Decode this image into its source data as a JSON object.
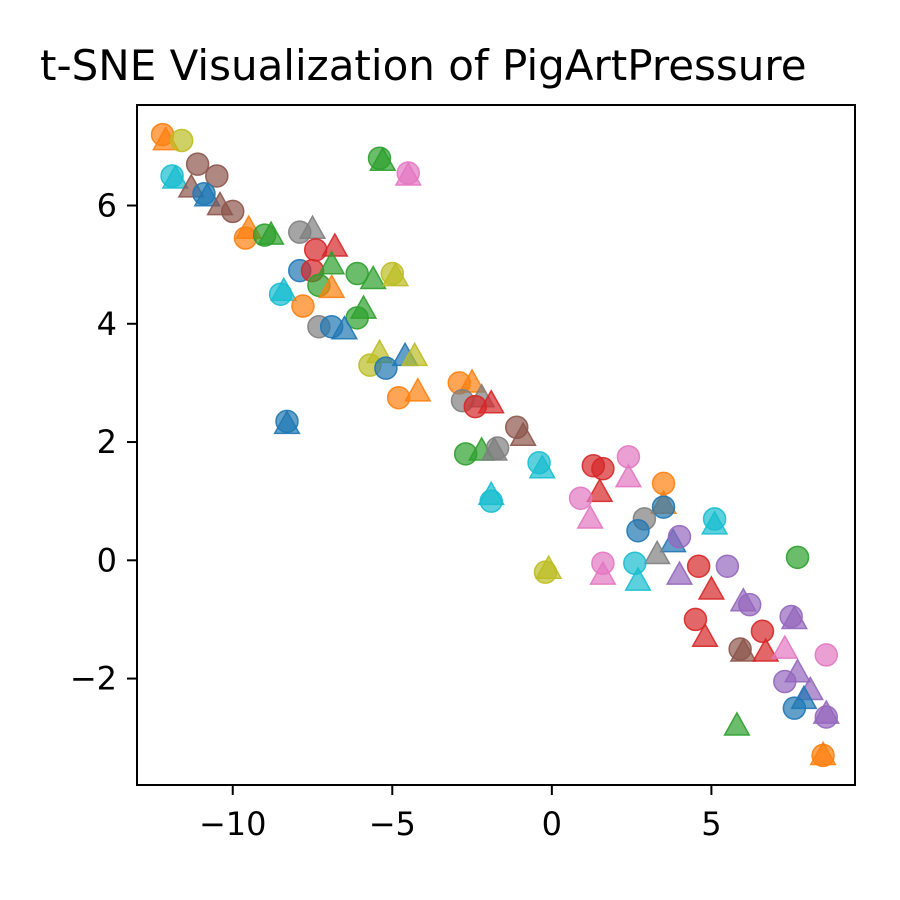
{
  "chart_data": {
    "type": "scatter",
    "title": "t-SNE Visualization of PigArtPressure",
    "xlabel": "",
    "ylabel": "",
    "xlim": [
      -13.0,
      9.5
    ],
    "ylim": [
      -3.8,
      7.7
    ],
    "xticks": [
      {
        "value": -10,
        "label": "−10"
      },
      {
        "value": -5,
        "label": "−5"
      },
      {
        "value": 0,
        "label": "0"
      },
      {
        "value": 5,
        "label": "5"
      }
    ],
    "yticks": [
      {
        "value": -2,
        "label": "−2"
      },
      {
        "value": 0,
        "label": "0"
      },
      {
        "value": 2,
        "label": "2"
      },
      {
        "value": 4,
        "label": "4"
      },
      {
        "value": 6,
        "label": "6"
      }
    ],
    "grid": false,
    "legend": "none",
    "marker_alpha": 0.7,
    "points": [
      {
        "x": -12.2,
        "y": 7.2,
        "color": "#ff7f0e",
        "marker": "circle"
      },
      {
        "x": -12.1,
        "y": 7.1,
        "color": "#ff7f0e",
        "marker": "triangle"
      },
      {
        "x": -11.6,
        "y": 7.1,
        "color": "#bcbd22",
        "marker": "circle"
      },
      {
        "x": -11.1,
        "y": 6.7,
        "color": "#8c564b",
        "marker": "circle"
      },
      {
        "x": -11.9,
        "y": 6.5,
        "color": "#17becf",
        "marker": "circle"
      },
      {
        "x": -11.8,
        "y": 6.45,
        "color": "#17becf",
        "marker": "triangle"
      },
      {
        "x": -11.3,
        "y": 6.3,
        "color": "#8c564b",
        "marker": "triangle"
      },
      {
        "x": -10.5,
        "y": 6.5,
        "color": "#8c564b",
        "marker": "circle"
      },
      {
        "x": -10.9,
        "y": 6.2,
        "color": "#1f77b4",
        "marker": "circle"
      },
      {
        "x": -10.8,
        "y": 6.15,
        "color": "#1f77b4",
        "marker": "triangle"
      },
      {
        "x": -10.4,
        "y": 6.0,
        "color": "#8c564b",
        "marker": "triangle"
      },
      {
        "x": -10.0,
        "y": 5.9,
        "color": "#8c564b",
        "marker": "circle"
      },
      {
        "x": -9.5,
        "y": 5.6,
        "color": "#ff7f0e",
        "marker": "triangle"
      },
      {
        "x": -9.6,
        "y": 5.45,
        "color": "#ff7f0e",
        "marker": "circle"
      },
      {
        "x": -9.0,
        "y": 5.5,
        "color": "#2ca02c",
        "marker": "circle"
      },
      {
        "x": -8.8,
        "y": 5.5,
        "color": "#2ca02c",
        "marker": "triangle"
      },
      {
        "x": -7.9,
        "y": 5.55,
        "color": "#7f7f7f",
        "marker": "circle"
      },
      {
        "x": -7.5,
        "y": 5.6,
        "color": "#7f7f7f",
        "marker": "triangle"
      },
      {
        "x": -7.4,
        "y": 5.25,
        "color": "#d62728",
        "marker": "circle"
      },
      {
        "x": -6.8,
        "y": 5.3,
        "color": "#d62728",
        "marker": "triangle"
      },
      {
        "x": -7.9,
        "y": 4.9,
        "color": "#1f77b4",
        "marker": "circle"
      },
      {
        "x": -7.5,
        "y": 4.9,
        "color": "#d62728",
        "marker": "circle"
      },
      {
        "x": -6.9,
        "y": 5.0,
        "color": "#2ca02c",
        "marker": "triangle"
      },
      {
        "x": -6.1,
        "y": 4.85,
        "color": "#2ca02c",
        "marker": "circle"
      },
      {
        "x": -5.6,
        "y": 4.75,
        "color": "#2ca02c",
        "marker": "triangle"
      },
      {
        "x": -5.0,
        "y": 4.85,
        "color": "#bcbd22",
        "marker": "circle"
      },
      {
        "x": -4.9,
        "y": 4.8,
        "color": "#bcbd22",
        "marker": "triangle"
      },
      {
        "x": -7.3,
        "y": 4.65,
        "color": "#2ca02c",
        "marker": "circle"
      },
      {
        "x": -6.9,
        "y": 4.6,
        "color": "#ff7f0e",
        "marker": "triangle"
      },
      {
        "x": -8.5,
        "y": 4.5,
        "color": "#17becf",
        "marker": "circle"
      },
      {
        "x": -8.4,
        "y": 4.55,
        "color": "#17becf",
        "marker": "triangle"
      },
      {
        "x": -7.8,
        "y": 4.3,
        "color": "#ff7f0e",
        "marker": "circle"
      },
      {
        "x": -5.9,
        "y": 4.25,
        "color": "#2ca02c",
        "marker": "triangle"
      },
      {
        "x": -6.1,
        "y": 4.1,
        "color": "#2ca02c",
        "marker": "circle"
      },
      {
        "x": -7.3,
        "y": 3.95,
        "color": "#7f7f7f",
        "marker": "circle"
      },
      {
        "x": -6.9,
        "y": 3.95,
        "color": "#1f77b4",
        "marker": "circle"
      },
      {
        "x": -6.5,
        "y": 3.9,
        "color": "#1f77b4",
        "marker": "triangle"
      },
      {
        "x": -5.7,
        "y": 3.3,
        "color": "#bcbd22",
        "marker": "circle"
      },
      {
        "x": -5.4,
        "y": 3.5,
        "color": "#bcbd22",
        "marker": "triangle"
      },
      {
        "x": -4.6,
        "y": 3.45,
        "color": "#1f77b4",
        "marker": "triangle"
      },
      {
        "x": -4.3,
        "y": 3.45,
        "color": "#bcbd22",
        "marker": "triangle"
      },
      {
        "x": -5.2,
        "y": 3.25,
        "color": "#1f77b4",
        "marker": "circle"
      },
      {
        "x": -4.8,
        "y": 2.75,
        "color": "#ff7f0e",
        "marker": "circle"
      },
      {
        "x": -4.2,
        "y": 2.85,
        "color": "#ff7f0e",
        "marker": "triangle"
      },
      {
        "x": -8.3,
        "y": 2.35,
        "color": "#1f77b4",
        "marker": "circle"
      },
      {
        "x": -8.3,
        "y": 2.3,
        "color": "#1f77b4",
        "marker": "triangle"
      },
      {
        "x": -5.4,
        "y": 6.8,
        "color": "#2ca02c",
        "marker": "circle"
      },
      {
        "x": -5.3,
        "y": 6.75,
        "color": "#2ca02c",
        "marker": "triangle"
      },
      {
        "x": -4.5,
        "y": 6.55,
        "color": "#e377c2",
        "marker": "circle"
      },
      {
        "x": -4.5,
        "y": 6.5,
        "color": "#e377c2",
        "marker": "triangle"
      },
      {
        "x": -2.9,
        "y": 3.0,
        "color": "#ff7f0e",
        "marker": "circle"
      },
      {
        "x": -2.5,
        "y": 3.0,
        "color": "#ff7f0e",
        "marker": "triangle"
      },
      {
        "x": -2.8,
        "y": 2.7,
        "color": "#7f7f7f",
        "marker": "circle"
      },
      {
        "x": -2.2,
        "y": 2.75,
        "color": "#7f7f7f",
        "marker": "triangle"
      },
      {
        "x": -2.4,
        "y": 2.6,
        "color": "#d62728",
        "marker": "circle"
      },
      {
        "x": -1.9,
        "y": 2.65,
        "color": "#d62728",
        "marker": "triangle"
      },
      {
        "x": -1.1,
        "y": 2.25,
        "color": "#8c564b",
        "marker": "circle"
      },
      {
        "x": -0.9,
        "y": 2.1,
        "color": "#8c564b",
        "marker": "triangle"
      },
      {
        "x": -2.7,
        "y": 1.8,
        "color": "#2ca02c",
        "marker": "circle"
      },
      {
        "x": -2.2,
        "y": 1.85,
        "color": "#2ca02c",
        "marker": "triangle"
      },
      {
        "x": -1.8,
        "y": 1.85,
        "color": "#7f7f7f",
        "marker": "triangle"
      },
      {
        "x": -1.7,
        "y": 1.9,
        "color": "#7f7f7f",
        "marker": "circle"
      },
      {
        "x": -0.4,
        "y": 1.65,
        "color": "#17becf",
        "marker": "circle"
      },
      {
        "x": -0.3,
        "y": 1.55,
        "color": "#17becf",
        "marker": "triangle"
      },
      {
        "x": -1.9,
        "y": 1.0,
        "color": "#17becf",
        "marker": "circle"
      },
      {
        "x": -1.9,
        "y": 1.1,
        "color": "#17becf",
        "marker": "triangle"
      },
      {
        "x": -0.2,
        "y": -0.2,
        "color": "#bcbd22",
        "marker": "circle"
      },
      {
        "x": -0.1,
        "y": -0.15,
        "color": "#bcbd22",
        "marker": "triangle"
      },
      {
        "x": 1.3,
        "y": 1.6,
        "color": "#d62728",
        "marker": "circle"
      },
      {
        "x": 1.6,
        "y": 1.55,
        "color": "#d62728",
        "marker": "circle"
      },
      {
        "x": 1.5,
        "y": 1.15,
        "color": "#d62728",
        "marker": "triangle"
      },
      {
        "x": 2.4,
        "y": 1.75,
        "color": "#e377c2",
        "marker": "circle"
      },
      {
        "x": 2.4,
        "y": 1.4,
        "color": "#e377c2",
        "marker": "triangle"
      },
      {
        "x": 0.9,
        "y": 1.05,
        "color": "#e377c2",
        "marker": "circle"
      },
      {
        "x": 1.2,
        "y": 0.7,
        "color": "#e377c2",
        "marker": "triangle"
      },
      {
        "x": 3.5,
        "y": 1.3,
        "color": "#ff7f0e",
        "marker": "circle"
      },
      {
        "x": 3.5,
        "y": 0.95,
        "color": "#ff7f0e",
        "marker": "triangle"
      },
      {
        "x": 3.5,
        "y": 0.9,
        "color": "#1f77b4",
        "marker": "circle"
      },
      {
        "x": 2.9,
        "y": 0.7,
        "color": "#7f7f7f",
        "marker": "circle"
      },
      {
        "x": 2.7,
        "y": 0.5,
        "color": "#1f77b4",
        "marker": "circle"
      },
      {
        "x": 3.8,
        "y": 0.3,
        "color": "#1f77b4",
        "marker": "triangle"
      },
      {
        "x": 4.0,
        "y": 0.4,
        "color": "#9467bd",
        "marker": "circle"
      },
      {
        "x": 5.1,
        "y": 0.7,
        "color": "#17becf",
        "marker": "circle"
      },
      {
        "x": 5.1,
        "y": 0.6,
        "color": "#17becf",
        "marker": "triangle"
      },
      {
        "x": 3.3,
        "y": 0.1,
        "color": "#7f7f7f",
        "marker": "triangle"
      },
      {
        "x": 2.6,
        "y": -0.05,
        "color": "#17becf",
        "marker": "circle"
      },
      {
        "x": 2.7,
        "y": -0.35,
        "color": "#17becf",
        "marker": "triangle"
      },
      {
        "x": 1.6,
        "y": -0.05,
        "color": "#e377c2",
        "marker": "circle"
      },
      {
        "x": 1.6,
        "y": -0.25,
        "color": "#e377c2",
        "marker": "triangle"
      },
      {
        "x": 4.6,
        "y": -0.1,
        "color": "#d62728",
        "marker": "circle"
      },
      {
        "x": 4.0,
        "y": -0.25,
        "color": "#9467bd",
        "marker": "triangle"
      },
      {
        "x": 5.5,
        "y": -0.1,
        "color": "#9467bd",
        "marker": "circle"
      },
      {
        "x": 7.7,
        "y": 0.05,
        "color": "#2ca02c",
        "marker": "circle"
      },
      {
        "x": 5.0,
        "y": -0.5,
        "color": "#d62728",
        "marker": "triangle"
      },
      {
        "x": 6.0,
        "y": -0.7,
        "color": "#9467bd",
        "marker": "triangle"
      },
      {
        "x": 6.2,
        "y": -0.75,
        "color": "#9467bd",
        "marker": "circle"
      },
      {
        "x": 7.5,
        "y": -0.95,
        "color": "#9467bd",
        "marker": "circle"
      },
      {
        "x": 7.6,
        "y": -1.0,
        "color": "#9467bd",
        "marker": "triangle"
      },
      {
        "x": 4.5,
        "y": -1.0,
        "color": "#d62728",
        "marker": "circle"
      },
      {
        "x": 4.8,
        "y": -1.3,
        "color": "#d62728",
        "marker": "triangle"
      },
      {
        "x": 5.9,
        "y": -1.5,
        "color": "#8c564b",
        "marker": "circle"
      },
      {
        "x": 6.0,
        "y": -1.55,
        "color": "#8c564b",
        "marker": "triangle"
      },
      {
        "x": 6.6,
        "y": -1.2,
        "color": "#d62728",
        "marker": "circle"
      },
      {
        "x": 6.7,
        "y": -1.55,
        "color": "#d62728",
        "marker": "triangle"
      },
      {
        "x": 7.3,
        "y": -1.5,
        "color": "#e377c2",
        "marker": "triangle"
      },
      {
        "x": 8.6,
        "y": -1.6,
        "color": "#e377c2",
        "marker": "circle"
      },
      {
        "x": 7.7,
        "y": -1.9,
        "color": "#9467bd",
        "marker": "triangle"
      },
      {
        "x": 7.3,
        "y": -2.05,
        "color": "#9467bd",
        "marker": "circle"
      },
      {
        "x": 8.1,
        "y": -2.2,
        "color": "#9467bd",
        "marker": "triangle"
      },
      {
        "x": 7.9,
        "y": -2.35,
        "color": "#1f77b4",
        "marker": "triangle"
      },
      {
        "x": 7.6,
        "y": -2.5,
        "color": "#1f77b4",
        "marker": "circle"
      },
      {
        "x": 8.6,
        "y": -2.65,
        "color": "#9467bd",
        "marker": "circle"
      },
      {
        "x": 8.6,
        "y": -2.6,
        "color": "#9467bd",
        "marker": "triangle"
      },
      {
        "x": 5.8,
        "y": -2.8,
        "color": "#2ca02c",
        "marker": "triangle"
      },
      {
        "x": 8.5,
        "y": -3.3,
        "color": "#ff7f0e",
        "marker": "circle"
      },
      {
        "x": 8.5,
        "y": -3.3,
        "color": "#ff7f0e",
        "marker": "triangle"
      }
    ]
  }
}
